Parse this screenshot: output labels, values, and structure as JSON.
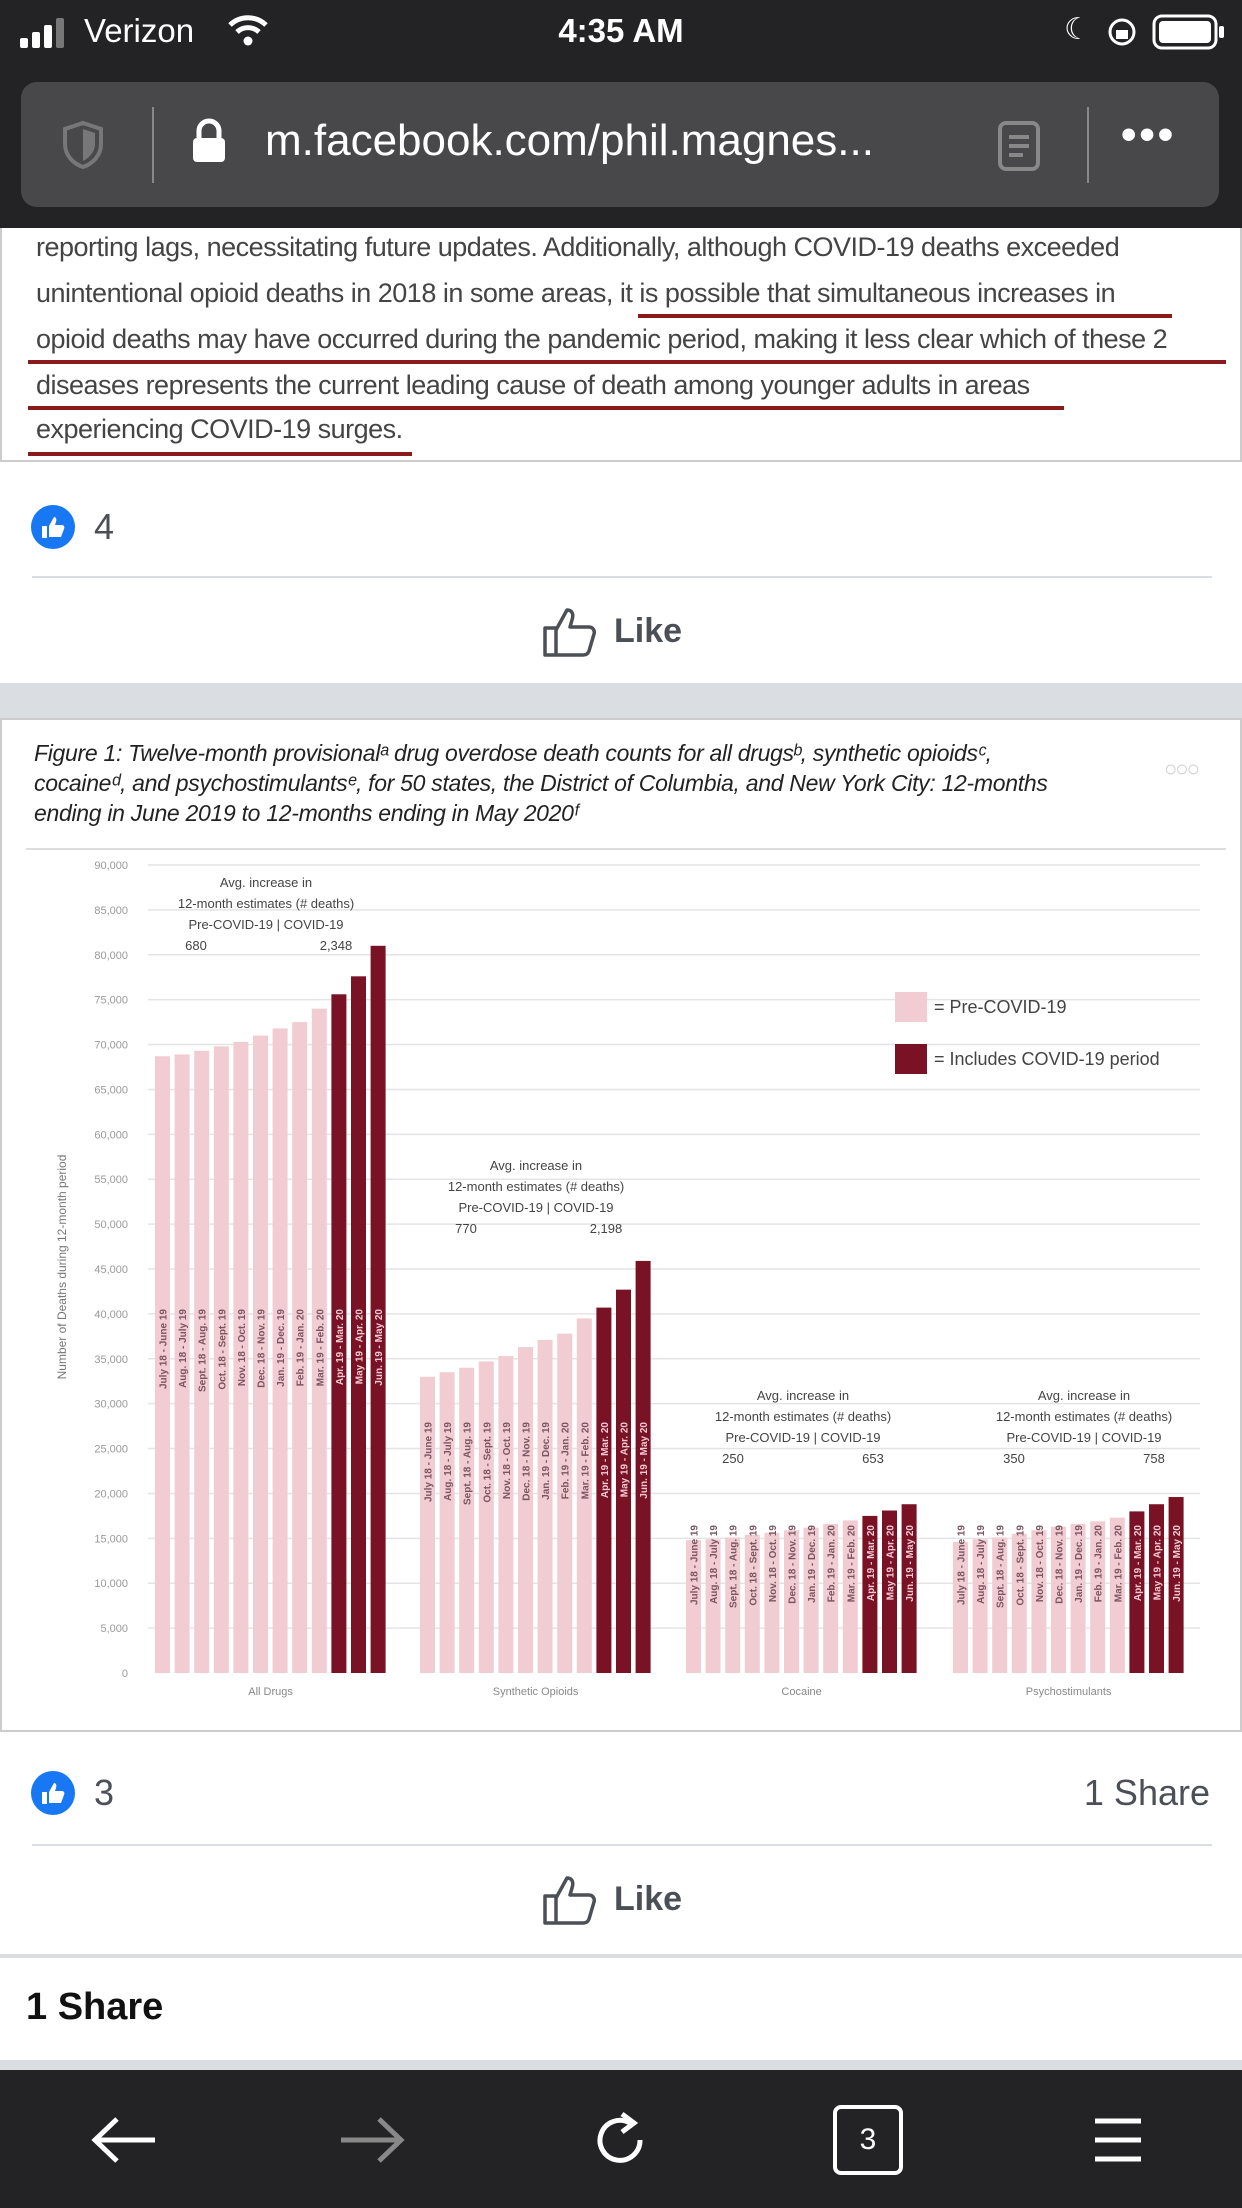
{
  "status_bar": {
    "carrier": "Verizon",
    "time": "4:35 AM"
  },
  "browser": {
    "url": "m.facebook.com/phil.magnes...",
    "tab_count": "3"
  },
  "post1": {
    "lines": [
      "reporting lags, necessitating future updates. Additionally, although COVID-19 deaths exceeded",
      "unintentional opioid deaths in 2018 in some areas, it is possible that simultaneous increases in",
      "opioid deaths may have occurred during the pandemic period, making it less clear which of these 2",
      "diseases represents the current leading cause of death among younger adults in areas",
      "experiencing COVID-19 surges."
    ],
    "likes": "4",
    "like_label": "Like"
  },
  "post2": {
    "likes": "3",
    "shares": "1 Share",
    "like_label": "Like",
    "footer_share": "1 Share"
  },
  "chart_data": {
    "type": "bar",
    "title_lines": [
      "Figure 1: Twelve-month provisionalᵃ drug overdose death counts for all drugsᵇ, synthetic opioidsᶜ,",
      "cocaineᵈ, and psychostimulantsᵉ, for 50 states, the District of Columbia, and New York City: 12-months",
      "ending in June 2019 to 12-months ending in May 2020ᶠ"
    ],
    "ylabel": "Number of Deaths during 12-month period",
    "ylim": [
      0,
      90000
    ],
    "yticks": [
      "0",
      "5,000",
      "10,000",
      "15,000",
      "20,000",
      "25,000",
      "30,000",
      "35,000",
      "40,000",
      "45,000",
      "50,000",
      "55,000",
      "60,000",
      "65,000",
      "70,000",
      "75,000",
      "80,000",
      "85,000",
      "90,000"
    ],
    "grid": true,
    "legend_position": "right",
    "legend": [
      {
        "label": "= Pre-COVID-19",
        "color": "#f2ccd3"
      },
      {
        "label": "= Includes COVID-19 period",
        "color": "#7a1226"
      }
    ],
    "periods": [
      "July 18 - June 19",
      "Aug. 18 - July 19",
      "Sept. 18 - Aug. 19",
      "Oct. 18 - Sept. 19",
      "Nov. 18 - Oct. 19",
      "Dec. 18 - Nov. 19",
      "Jan. 19 - Dec. 19",
      "Feb. 19 - Jan. 20",
      "Mar. 19 - Feb. 20",
      "Apr. 19 - Mar. 20",
      "May 19 - Apr. 20",
      "Jun. 19 - May 20"
    ],
    "covid_from_index": 9,
    "groups": [
      {
        "name": "All Drugs",
        "values": [
          68700,
          68900,
          69300,
          69800,
          70300,
          71000,
          71800,
          72500,
          74000,
          75600,
          77600,
          81000
        ],
        "annotation": [
          "Avg. increase in",
          "12-month estimates (# deaths)",
          "Pre-COVID-19     |     COVID-19"
        ],
        "pre": "680",
        "covid": "2,348"
      },
      {
        "name": "Synthetic Opioids",
        "values": [
          33000,
          33500,
          34000,
          34700,
          35300,
          36300,
          37100,
          37800,
          39500,
          40700,
          42700,
          45900
        ],
        "annotation": [
          "Avg. increase in",
          "12-month estimates (# deaths)",
          "Pre-COVID-19     |     COVID-19"
        ],
        "pre": "770",
        "covid": "2,198"
      },
      {
        "name": "Cocaine",
        "values": [
          14800,
          14900,
          15100,
          15400,
          15600,
          15900,
          16200,
          16600,
          17000,
          17500,
          18100,
          18800
        ],
        "annotation": [
          "Avg. increase in",
          "12-month estimates (# deaths)",
          "Pre-COVID-19     |     COVID-19"
        ],
        "pre": "250",
        "covid": "653"
      },
      {
        "name": "Psychostimulants",
        "values": [
          14600,
          14900,
          15100,
          15500,
          15900,
          16300,
          16600,
          16900,
          17300,
          18000,
          18800,
          19600
        ],
        "annotation": [
          "Avg. increase in",
          "12-month estimates (# deaths)",
          "Pre-COVID-19     |     COVID-19"
        ],
        "pre": "350",
        "covid": "758"
      }
    ]
  }
}
